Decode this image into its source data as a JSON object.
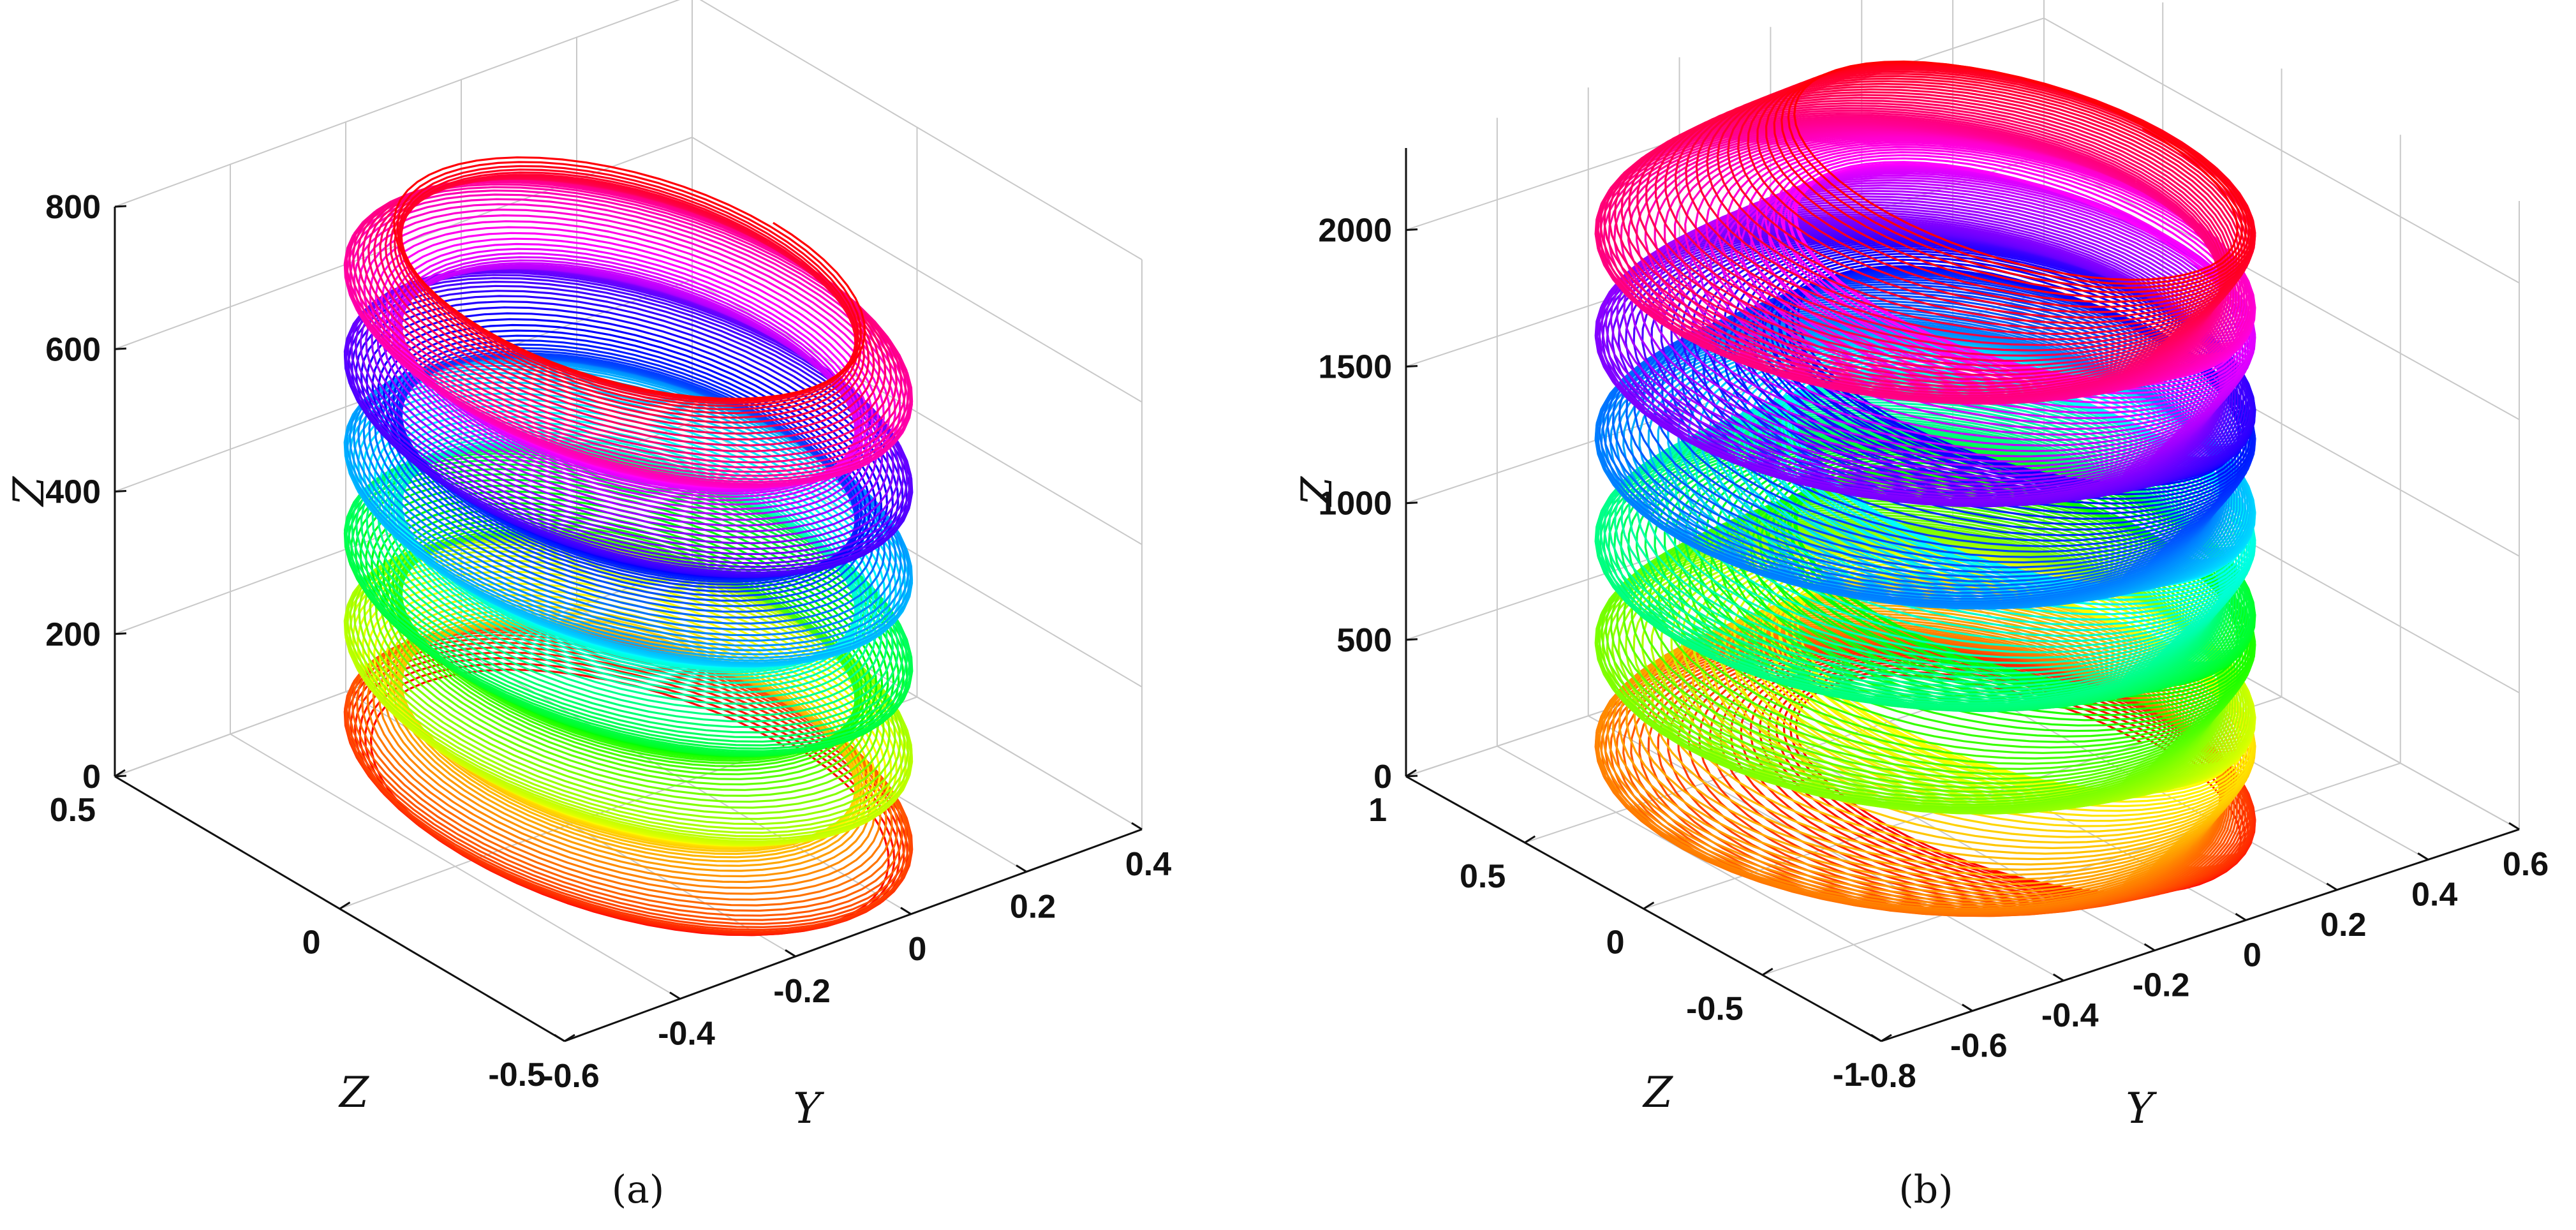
{
  "chart_data": [
    {
      "type": "line",
      "panel_label": "(a)",
      "x_axis_label": "Y",
      "y_axis_label": "Z",
      "z_axis_label": "Z",
      "z_axis_label_display": "Z",
      "xlim": [
        -0.6,
        0.4
      ],
      "ylim": [
        -0.5,
        0.5
      ],
      "zlim": [
        0,
        800
      ],
      "x_ticks": [
        -0.6,
        -0.4,
        -0.2,
        0,
        0.2,
        0.4
      ],
      "x_tick_labels": [
        "-0.6",
        "-0.4",
        "-0.2",
        "0",
        "0.2",
        "0.4"
      ],
      "y_ticks": [
        -0.5,
        0,
        0.5
      ],
      "y_tick_labels": [
        "-0.5",
        "0",
        "0.5"
      ],
      "z_ticks": [
        0,
        200,
        400,
        600,
        800
      ],
      "z_tick_labels": [
        "0",
        "200",
        "400",
        "600",
        "800"
      ],
      "grid": true,
      "colormap": "hsv",
      "curve": {
        "description_of_values": "helical trajectory colored by height",
        "center_x": -0.1,
        "center_y": 0.0,
        "radius_x": 0.3,
        "radius_y": 0.5,
        "z_start": 0,
        "z_end": 740,
        "turns": 180
      }
    },
    {
      "type": "line",
      "panel_label": "(b)",
      "x_axis_label": "Y",
      "y_axis_label": "Z",
      "z_axis_label_display": "Z",
      "xlim": [
        -0.8,
        0.6
      ],
      "ylim": [
        -1,
        1
      ],
      "zlim": [
        0,
        2300
      ],
      "x_ticks": [
        -0.8,
        -0.6,
        -0.4,
        -0.2,
        0,
        0.2,
        0.4,
        0.6
      ],
      "x_tick_labels": [
        "-0.8",
        "-0.6",
        "-0.4",
        "-0.2",
        "0",
        "0.2",
        "0.4",
        "0.6"
      ],
      "y_ticks": [
        -1,
        -0.5,
        0,
        0.5,
        1
      ],
      "y_tick_labels": [
        "-1",
        "-0.5",
        "0",
        "0.5",
        "1"
      ],
      "z_ticks": [
        0,
        500,
        1000,
        1500,
        2000
      ],
      "z_tick_labels": [
        "0",
        "500",
        "1000",
        "1500",
        "2000"
      ],
      "grid": true,
      "colormap": "hsv",
      "curve": {
        "description_of_values": "stacked multi-lobe helical trajectory colored by height",
        "center_x": -0.1,
        "center_y": 0.0,
        "radius_x": 0.5,
        "radius_y": 0.9,
        "z_start": 0,
        "z_end": 2250,
        "turns": 320,
        "bands": 6
      }
    }
  ],
  "colors": {
    "background": "#ffffff",
    "axis_line": "#111111",
    "grid_line": "#c8c8c8"
  }
}
